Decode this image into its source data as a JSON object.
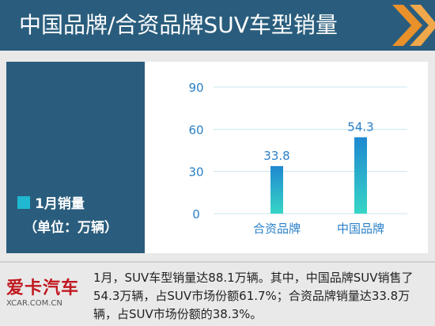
{
  "header": {
    "title": "中国品牌/合资品牌SUV车型销量"
  },
  "legend": {
    "label": "1月销量",
    "unit": "（单位：万辆）"
  },
  "chart_data": {
    "type": "bar",
    "categories": [
      "合资品牌",
      "中国品牌"
    ],
    "values": [
      33.8,
      54.3
    ],
    "value_labels": [
      "33.8",
      "54.3"
    ],
    "yticks": [
      "0",
      "30",
      "60",
      "90"
    ],
    "ylim": [
      0,
      90
    ],
    "grid": true,
    "colors": {
      "bar_top": "#1e88d0",
      "bar_bottom": "#37d6c6",
      "tick_text": "#2a80c8",
      "grid": "#c8e6f0"
    }
  },
  "footer": {
    "logo_text": "爱卡汽车",
    "logo_subtext": "XCAR.COM.CN",
    "summary": "1月，SUV车型销量达88.1万辆。其中，中国品牌SUV销售了54.3万辆，占SUV市场份额61.7%；合资品牌销量达33.8万辆，占SUV市场份额的38.3%。"
  },
  "colors": {
    "header_bg": "#2a5d7d",
    "accent_orange": "#e8902a",
    "legend_swatch": "#20b8d0"
  }
}
